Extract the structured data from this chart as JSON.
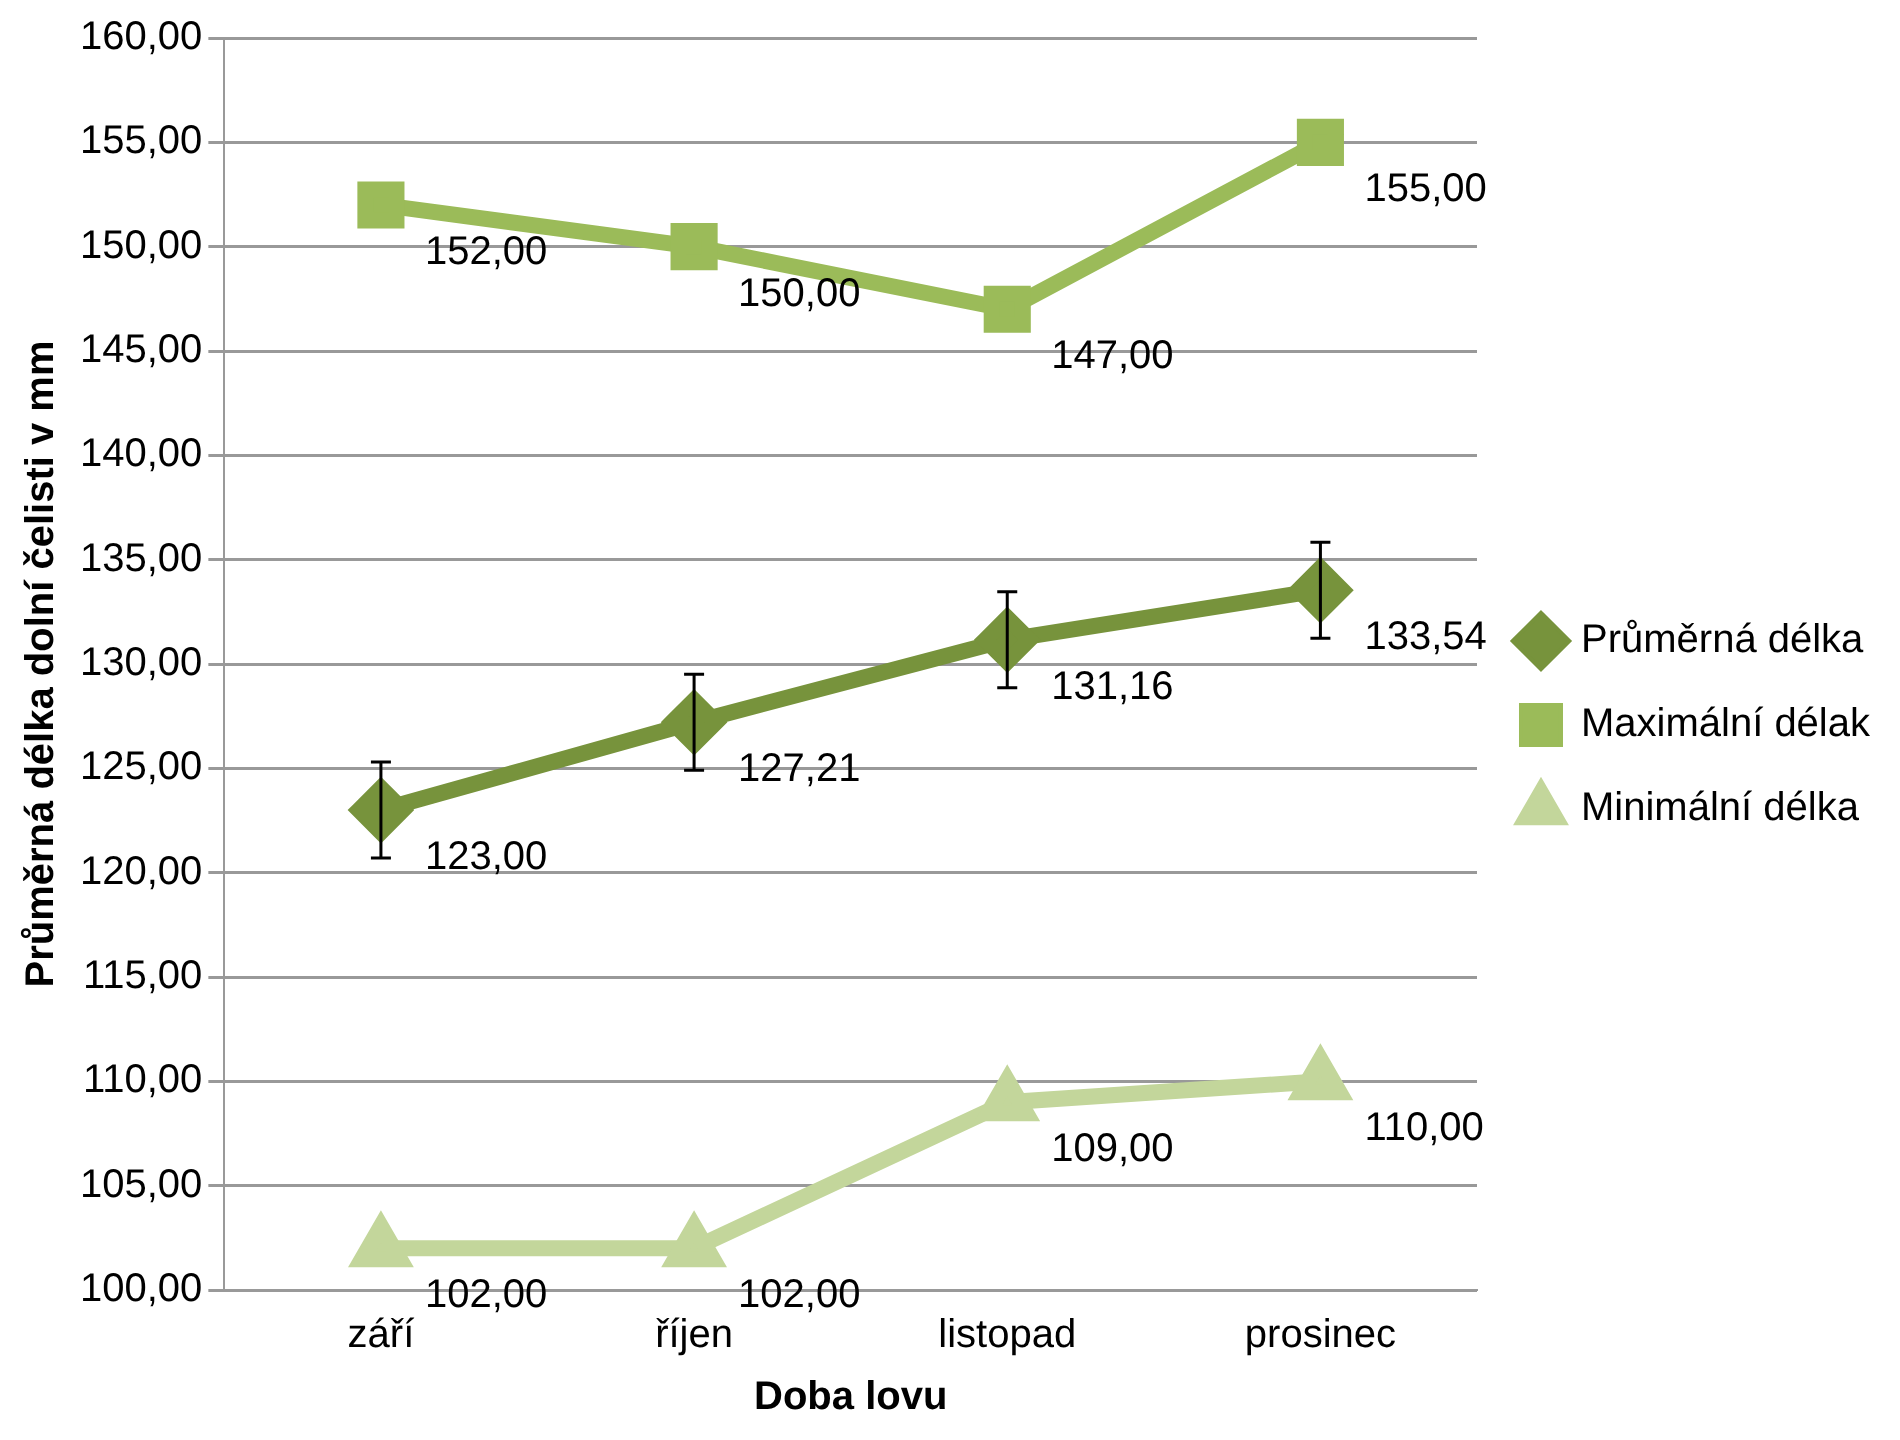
{
  "chart_data": {
    "type": "line",
    "xlabel": "Doba lovu",
    "ylabel": "Průměrná délka dolní čelisti v mm",
    "categories": [
      "září",
      "říjen",
      "listopad",
      "prosinec"
    ],
    "ylim": [
      100,
      160
    ],
    "yticks": [
      {
        "value": 100,
        "label": "100,00"
      },
      {
        "value": 105,
        "label": "105,00"
      },
      {
        "value": 110,
        "label": "110,00"
      },
      {
        "value": 115,
        "label": "115,00"
      },
      {
        "value": 120,
        "label": "120,00"
      },
      {
        "value": 125,
        "label": "125,00"
      },
      {
        "value": 130,
        "label": "130,00"
      },
      {
        "value": 135,
        "label": "135,00"
      },
      {
        "value": 140,
        "label": "140,00"
      },
      {
        "value": 145,
        "label": "145,00"
      },
      {
        "value": 150,
        "label": "150,00"
      },
      {
        "value": 155,
        "label": "155,00"
      },
      {
        "value": 160,
        "label": "160,00"
      }
    ],
    "grid": "y",
    "legend": "right",
    "series": [
      {
        "name": "Průměrná délka",
        "color": "#77933c",
        "marker": "diamond",
        "values": [
          123,
          127.21,
          131.16,
          133.54
        ],
        "errors": [
          2.3,
          2.3,
          2.3,
          2.3
        ],
        "value_labels": [
          "123,00",
          "127,21",
          "131,16",
          "133,54"
        ]
      },
      {
        "name": "Maximální délak",
        "color": "#9bbb59",
        "marker": "square",
        "values": [
          152,
          150,
          147,
          155
        ],
        "value_labels": [
          "152,00",
          "150,00",
          "147,00",
          "155,00"
        ]
      },
      {
        "name": "Minimální délka",
        "color": "#c3d69b",
        "marker": "triangle",
        "values": [
          102,
          102,
          109,
          110
        ],
        "value_labels": [
          "102,00",
          "102,00",
          "109,00",
          "110,00"
        ]
      }
    ]
  }
}
